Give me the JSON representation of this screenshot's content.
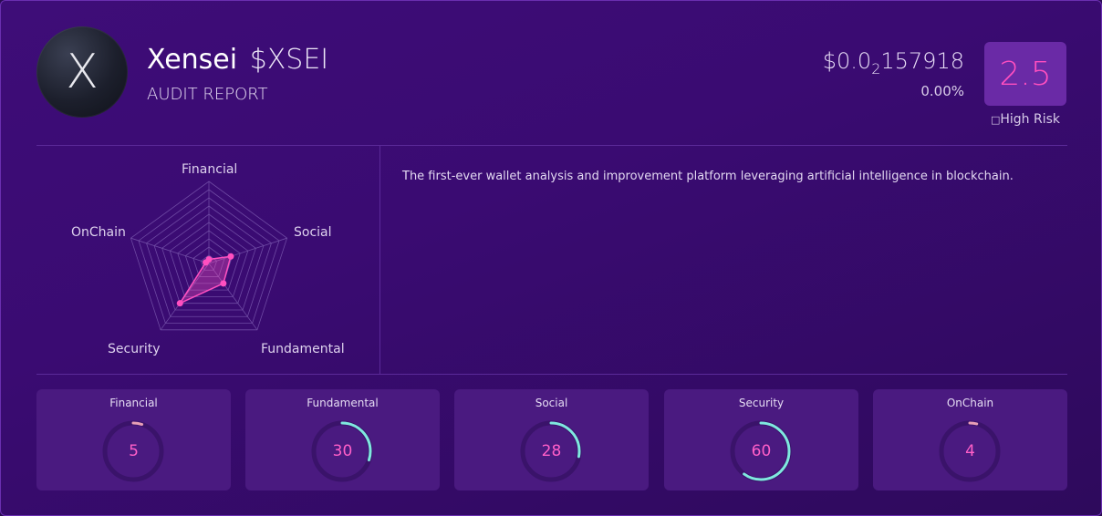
{
  "header": {
    "logo_letter": "X",
    "name": "Xensei",
    "ticker": "$XSEI",
    "subtitle": "AUDIT REPORT",
    "price_prefix": "$0.0",
    "price_zero_count": "2",
    "price_digits": "157918",
    "change": "0.00%",
    "score": "2.5",
    "risk_icon": "warning-icon",
    "risk_label": "High Risk"
  },
  "description": "The first-ever wallet analysis and improvement platform leveraging artificial intelligence in blockchain.",
  "colors": {
    "accent_pink": "#ff4fc0",
    "accent_teal": "#7fe8df",
    "panel": "#4a1a80",
    "background": "#3e0d78"
  },
  "chart_data": {
    "type": "radar",
    "axes": [
      "Financial",
      "Social",
      "Fundamental",
      "Security",
      "OnChain"
    ],
    "values": [
      5,
      28,
      30,
      60,
      4
    ],
    "range": [
      0,
      100
    ]
  },
  "stats": [
    {
      "label": "Financial",
      "value": 5
    },
    {
      "label": "Fundamental",
      "value": 30
    },
    {
      "label": "Social",
      "value": 28
    },
    {
      "label": "Security",
      "value": 60
    },
    {
      "label": "OnChain",
      "value": 4
    }
  ]
}
